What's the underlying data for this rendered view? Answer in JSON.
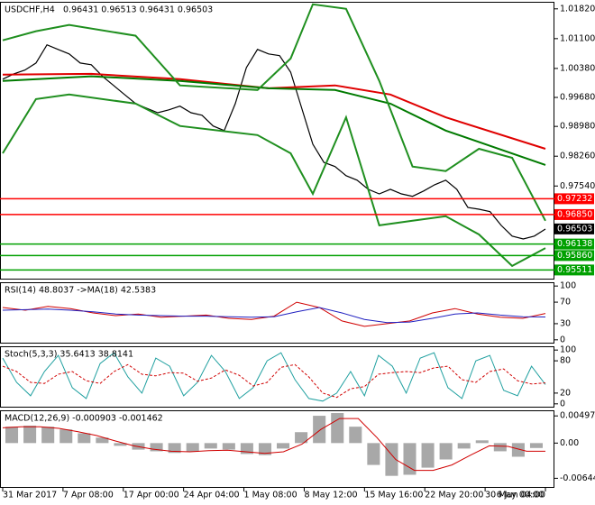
{
  "chart_data": [
    {
      "type": "line",
      "title": "USDCHF,H4",
      "subtitle": "0.96431 0.96513 0.96431 0.96503",
      "ylim": [
        0.9528,
        1.0199
      ],
      "yticks": [
        {
          "value": 1.0182,
          "label": "1.01820"
        },
        {
          "value": 1.011,
          "label": "1.01100"
        },
        {
          "value": 1.0038,
          "label": "1.00380"
        },
        {
          "value": 0.9968,
          "label": "0.99680"
        },
        {
          "value": 0.9898,
          "label": "0.98980"
        },
        {
          "value": 0.9826,
          "label": "0.98260"
        },
        {
          "value": 0.9754,
          "label": "0.97540"
        }
      ],
      "series": [
        {
          "color": "#000000",
          "values": [
            1.0012,
            1.0025,
            1.0034,
            1.0051,
            1.0095,
            1.0084,
            1.0073,
            1.0051,
            1.0047,
            1.0019,
            0.9997,
            0.9975,
            0.9953,
            0.9942,
            0.9931,
            0.9938,
            0.9947,
            0.9931,
            0.9925,
            0.9899,
            0.9888,
            0.9953,
            1.004,
            1.0084,
            1.0073,
            1.0069,
            1.0029,
            0.9942,
            0.9855,
            0.9811,
            0.9801,
            0.9779,
            0.9768,
            0.9746,
            0.9735,
            0.9746,
            0.9735,
            0.9729,
            0.9742,
            0.9757,
            0.9768,
            0.9746,
            0.9702,
            0.9698,
            0.9692,
            0.9659,
            0.9633,
            0.9626,
            0.9633,
            0.965
          ]
        },
        {
          "color": "#e00000",
          "x": [
            0,
            8,
            16,
            24,
            30,
            35,
            40,
            49
          ],
          "values": [
            1.0023,
            1.0025,
            1.0012,
            0.999,
            0.9997,
            0.9975,
            0.992,
            0.9844
          ]
        },
        {
          "color": "#007a00",
          "x": [
            0,
            8,
            16,
            24,
            30,
            35,
            40,
            49
          ],
          "values": [
            1.0008,
            1.0019,
            1.0008,
            0.999,
            0.9986,
            0.9953,
            0.9888,
            0.9805
          ]
        },
        {
          "color": "#1f8f1f",
          "x": [
            0,
            3,
            6,
            12,
            16,
            23,
            26,
            28,
            31,
            34,
            37,
            40,
            43,
            46,
            49
          ],
          "values": [
            1.0106,
            1.0128,
            1.0143,
            1.0117,
            0.9997,
            0.9986,
            1.0062,
            1.0193,
            1.0182,
            1.0008,
            0.9801,
            0.979,
            0.9844,
            0.9822,
            0.967
          ]
        },
        {
          "color": "#1f8f1f",
          "x": [
            0,
            3,
            6,
            12,
            16,
            23,
            26,
            28,
            31,
            34,
            37,
            40,
            43,
            46,
            49
          ],
          "values": [
            0.9833,
            0.9964,
            0.9975,
            0.9953,
            0.9899,
            0.9877,
            0.9833,
            0.9735,
            0.992,
            0.9659,
            0.967,
            0.9681,
            0.9637,
            0.9561,
            0.9604
          ]
        }
      ],
      "levels": [
        {
          "value": 0.97232,
          "color": "#ff0000"
        },
        {
          "value": 0.9685,
          "label": "0.96850",
          "color": "#ff0000"
        },
        {
          "value": 0.96138,
          "color": "#00a000"
        },
        {
          "value": 0.9586,
          "label": "0.95860",
          "color": "#00a000"
        },
        {
          "value": 0.95511,
          "color": "#00a000"
        }
      ],
      "last_price": 0.96503
    },
    {
      "type": "line",
      "title": "RSI(14) 48.8037  ->MA(18) 42.5383",
      "ylim": [
        -7,
        107
      ],
      "yticks": [
        100,
        70,
        30,
        0
      ],
      "series": [
        {
          "color": "#d00000",
          "values": [
            60,
            55,
            62,
            58,
            50,
            45,
            48,
            42,
            44,
            46,
            40,
            38,
            44,
            70,
            60,
            35,
            25,
            30,
            35,
            50,
            58,
            48,
            42,
            40,
            49
          ]
        },
        {
          "color": "#2020c0",
          "values": [
            55,
            56,
            57,
            55,
            52,
            48,
            46,
            45,
            44,
            44,
            43,
            42,
            43,
            52,
            60,
            50,
            38,
            32,
            33,
            40,
            48,
            50,
            46,
            43,
            42.5
          ]
        }
      ]
    },
    {
      "type": "line",
      "title": "Stoch(5,3,3) 35.6413 38.8141",
      "ylim": [
        -7,
        107
      ],
      "yticks": [
        100,
        80,
        20,
        0
      ],
      "series": [
        {
          "color": "#20a0a0",
          "values": [
            85,
            40,
            15,
            60,
            90,
            30,
            10,
            75,
            95,
            50,
            20,
            85,
            70,
            15,
            40,
            90,
            60,
            10,
            30,
            80,
            95,
            45,
            10,
            5,
            20,
            60,
            15,
            90,
            70,
            20,
            85,
            95,
            30,
            10,
            80,
            90,
            25,
            15,
            70,
            36
          ]
        },
        {
          "color": "#d00000",
          "dash": true,
          "values": [
            70,
            60,
            40,
            38,
            55,
            60,
            43,
            38,
            60,
            73,
            55,
            52,
            58,
            57,
            42,
            48,
            63,
            53,
            33,
            40,
            68,
            73,
            50,
            20,
            12,
            28,
            32,
            55,
            58,
            60,
            58,
            67,
            70,
            45,
            40,
            60,
            65,
            43,
            37,
            39
          ]
        }
      ]
    },
    {
      "type": "bar",
      "title": "MACD(12,26,9) -0.000903 -0.001462",
      "ylim": [
        -0.0082,
        0.006
      ],
      "yticks": [
        0.004975,
        {
          "value": 0,
          "label": "0.00"
        },
        -0.006447
      ],
      "color": "#a8a8a8",
      "values": [
        0.003,
        0.0032,
        0.003,
        0.0025,
        0.0018,
        0.001,
        -0.0005,
        -0.0012,
        -0.0015,
        -0.0018,
        -0.0016,
        -0.001,
        -0.0012,
        -0.002,
        -0.0022,
        -0.001,
        0.002,
        0.005,
        0.0055,
        0.003,
        -0.004,
        -0.006,
        -0.0058,
        -0.0045,
        -0.003,
        -0.001,
        0.0005,
        -0.0015,
        -0.0025,
        -0.0009
      ],
      "series": [
        {
          "color": "#d00000",
          "values": [
            0.0028,
            0.003,
            0.003,
            0.0027,
            0.0021,
            0.0014,
            0.0004,
            -0.0005,
            -0.0011,
            -0.0015,
            -0.0016,
            -0.0014,
            -0.0013,
            -0.0016,
            -0.0019,
            -0.0016,
            -0.0002,
            0.0025,
            0.0045,
            0.0045,
            0.001,
            -0.003,
            -0.005,
            -0.005,
            -0.004,
            -0.0022,
            -0.0005,
            -0.0006,
            -0.0015,
            -0.0015
          ]
        }
      ],
      "x_labels": [
        "31 Mar 2017",
        "7 Apr 08:00",
        "17 Apr 00:00",
        "24 Apr 04:00",
        "1 May 08:00",
        "8 May 12:00",
        "15 May 16:00",
        "22 May 20:00",
        "30 May 00:00",
        "6 Jun 04:00"
      ]
    }
  ]
}
